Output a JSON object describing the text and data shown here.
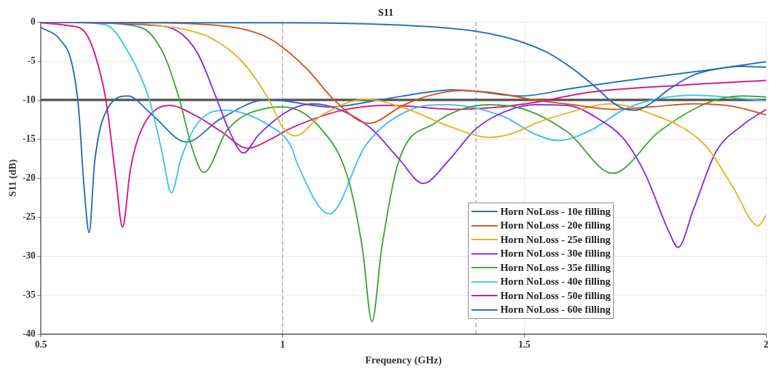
{
  "chart_data": {
    "type": "line",
    "title": "S11",
    "xlabel": "Frequency (GHz)",
    "ylabel": "S11 (dB)",
    "xlim": [
      0.5,
      2
    ],
    "xticks": [
      0.5,
      1,
      1.5,
      2
    ],
    "ylim": [
      -40,
      0
    ],
    "yticks": [
      -40,
      -35,
      -30,
      -25,
      -20,
      -15,
      -10,
      -5,
      0
    ],
    "grid": true,
    "legend": "bottom right",
    "marker": "none",
    "line_style": "solid",
    "ref_lines": [
      {
        "axis": "x",
        "value": 1,
        "color": "#9a9a9a",
        "line_style": "dashed"
      },
      {
        "axis": "x",
        "value": 1.4,
        "color": "#9a9a9a",
        "line_style": "dashed"
      },
      {
        "axis": "y",
        "value": -10,
        "color": "#555555",
        "line_style": "solid"
      }
    ],
    "series": [
      {
        "name": "Horn NoLoss - 10e filling",
        "color": "#1f6fba",
        "x": [
          0.5,
          0.8,
          1.0,
          1.2,
          1.3,
          1.4,
          1.45,
          1.5,
          1.55,
          1.6,
          1.65,
          1.68,
          1.71,
          1.73,
          1.76,
          1.8,
          1.85,
          1.9,
          1.95,
          2.0
        ],
        "values": [
          0,
          -0.1,
          -0.1,
          -0.3,
          -0.6,
          -1.2,
          -1.8,
          -2.7,
          -4,
          -6,
          -8.5,
          -10.2,
          -11.2,
          -11.3,
          -10.5,
          -8.6,
          -6.8,
          -6,
          -5.7,
          -5.8
        ]
      },
      {
        "name": "Horn NoLoss - 20e filling",
        "color": "#d95319",
        "x": [
          0.5,
          0.7,
          0.8,
          0.9,
          0.95,
          0.983,
          1.05,
          1.11,
          1.178,
          1.249,
          1.3,
          1.37,
          1.45,
          1.52,
          1.6,
          1.683,
          1.76,
          1.85,
          1.93,
          2.0
        ],
        "values": [
          0,
          -0.1,
          -0.2,
          -0.7,
          -1.5,
          -2.5,
          -6,
          -10.2,
          -13,
          -10.7,
          -9.5,
          -8.8,
          -9.2,
          -10,
          -10.6,
          -11.2,
          -10.9,
          -10.5,
          -10.8,
          -11.9
        ]
      },
      {
        "name": "Horn NoLoss - 25e filling",
        "color": "#edb120",
        "x": [
          0.5,
          0.7,
          0.75,
          0.8,
          0.85,
          0.915,
          0.972,
          1.0,
          1.026,
          1.08,
          1.172,
          1.25,
          1.35,
          1.428,
          1.48,
          1.523,
          1.6,
          1.675,
          1.75,
          1.874,
          1.93,
          1.984,
          2.0
        ],
        "values": [
          0,
          -0.2,
          -0.5,
          -1,
          -2,
          -5,
          -10,
          -13.5,
          -14.6,
          -12,
          -9.9,
          -11,
          -13.5,
          -14.8,
          -14.2,
          -13,
          -11.5,
          -10.5,
          -11.5,
          -15.8,
          -21,
          -26.1,
          -24.8
        ]
      },
      {
        "name": "Horn NoLoss - 30e filling",
        "color": "#8c2be0",
        "x": [
          0.5,
          0.72,
          0.777,
          0.824,
          0.862,
          0.89,
          0.919,
          0.95,
          1.018,
          1.064,
          1.12,
          1.182,
          1.24,
          1.291,
          1.34,
          1.4,
          1.46,
          1.523,
          1.589,
          1.65,
          1.707,
          1.75,
          1.8,
          1.818,
          1.85,
          1.896,
          1.95,
          2.0
        ],
        "values": [
          0,
          -0.4,
          -1,
          -4,
          -9.6,
          -14,
          -16.8,
          -14.5,
          -11.2,
          -10.5,
          -11.3,
          -13.6,
          -17.5,
          -20.7,
          -18,
          -13.7,
          -11.5,
          -10.6,
          -10.7,
          -12.3,
          -15.1,
          -19.5,
          -27,
          -28.9,
          -24,
          -16.7,
          -13.3,
          -11.2
        ]
      },
      {
        "name": "Horn NoLoss - 35e filling",
        "color": "#3ba935",
        "x": [
          0.5,
          0.6,
          0.706,
          0.753,
          0.787,
          0.812,
          0.837,
          0.886,
          0.973,
          1.0,
          1.078,
          1.135,
          1.165,
          1.185,
          1.205,
          1.239,
          1.314,
          1.428,
          1.5,
          1.589,
          1.683,
          1.778,
          1.874,
          1.95,
          2.0
        ],
        "values": [
          0,
          -0.1,
          -0.7,
          -4,
          -10,
          -16,
          -19.3,
          -13.8,
          -11,
          -10.9,
          -13.6,
          -20,
          -29,
          -38.4,
          -29,
          -18.1,
          -13,
          -10.6,
          -11.2,
          -14.1,
          -19.4,
          -14.1,
          -10.5,
          -9.5,
          -9.6
        ]
      },
      {
        "name": "Horn NoLoss - 40e filling",
        "color": "#3ec3ef",
        "x": [
          0.5,
          0.58,
          0.635,
          0.682,
          0.724,
          0.75,
          0.77,
          0.79,
          0.824,
          0.88,
          0.973,
          1.018,
          1.03,
          1.097,
          1.172,
          1.267,
          1.338,
          1.456,
          1.523,
          1.57,
          1.64,
          1.707,
          1.78,
          1.85,
          2.0
        ],
        "values": [
          0,
          -0.1,
          -0.4,
          -4,
          -9.9,
          -16.5,
          -21.9,
          -17.5,
          -13,
          -11.3,
          -13.3,
          -16,
          -18.1,
          -24.6,
          -15.8,
          -11.2,
          -10.6,
          -12.1,
          -14.4,
          -15.2,
          -13.8,
          -11.2,
          -9.8,
          -9.4,
          -10.1
        ]
      },
      {
        "name": "Horn NoLoss - 50e filling",
        "color": "#d9138a",
        "x": [
          0.5,
          0.56,
          0.588,
          0.611,
          0.635,
          0.655,
          0.669,
          0.685,
          0.706,
          0.766,
          0.82,
          0.872,
          0.929,
          0.97,
          1.018,
          1.125,
          1.22,
          1.362,
          1.45,
          1.523,
          1.636,
          1.825,
          2.0
        ],
        "values": [
          -0.1,
          -0.5,
          -1.1,
          -4,
          -10.2,
          -20,
          -26.3,
          -19,
          -14.1,
          -10.7,
          -12,
          -14,
          -16.2,
          -15.2,
          -13.6,
          -11.3,
          -10.7,
          -11.2,
          -10.9,
          -10.3,
          -9,
          -8.1,
          -7.5
        ]
      },
      {
        "name": "Horn NoLoss - 60e filling",
        "color": "#1f6fba",
        "x": [
          0.5,
          0.54,
          0.564,
          0.578,
          0.589,
          0.6,
          0.611,
          0.639,
          0.68,
          0.73,
          0.801,
          0.872,
          0.966,
          1.0,
          1.1,
          1.2,
          1.3,
          1.352,
          1.4,
          1.49,
          1.6,
          1.7,
          1.8,
          1.9,
          2.0
        ],
        "values": [
          -0.7,
          -2.3,
          -5.3,
          -11,
          -20.9,
          -27,
          -18.1,
          -11,
          -9.5,
          -11.9,
          -15.4,
          -12.4,
          -10,
          -10.1,
          -10.9,
          -10,
          -9,
          -8.7,
          -8.9,
          -9.5,
          -8.5,
          -7.6,
          -6.8,
          -6,
          -5.1
        ]
      }
    ]
  }
}
